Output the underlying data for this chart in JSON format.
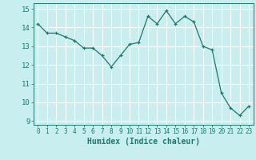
{
  "x": [
    0,
    1,
    2,
    3,
    4,
    5,
    6,
    7,
    8,
    9,
    10,
    11,
    12,
    13,
    14,
    15,
    16,
    17,
    18,
    19,
    20,
    21,
    22,
    23
  ],
  "y": [
    14.2,
    13.7,
    13.7,
    13.5,
    13.3,
    12.9,
    12.9,
    12.5,
    11.9,
    12.5,
    13.1,
    13.2,
    14.6,
    14.2,
    14.9,
    14.2,
    14.6,
    14.3,
    13.0,
    12.8,
    10.5,
    9.7,
    9.3,
    9.8
  ],
  "line_color": "#1a7a6e",
  "marker": "+",
  "marker_size": 3,
  "bg_color": "#c8eef0",
  "grid_color": "#ffffff",
  "xlabel": "Humidex (Indice chaleur)",
  "ylabel_ticks": [
    9,
    10,
    11,
    12,
    13,
    14,
    15
  ],
  "xlim": [
    -0.5,
    23.5
  ],
  "ylim": [
    8.8,
    15.3
  ]
}
